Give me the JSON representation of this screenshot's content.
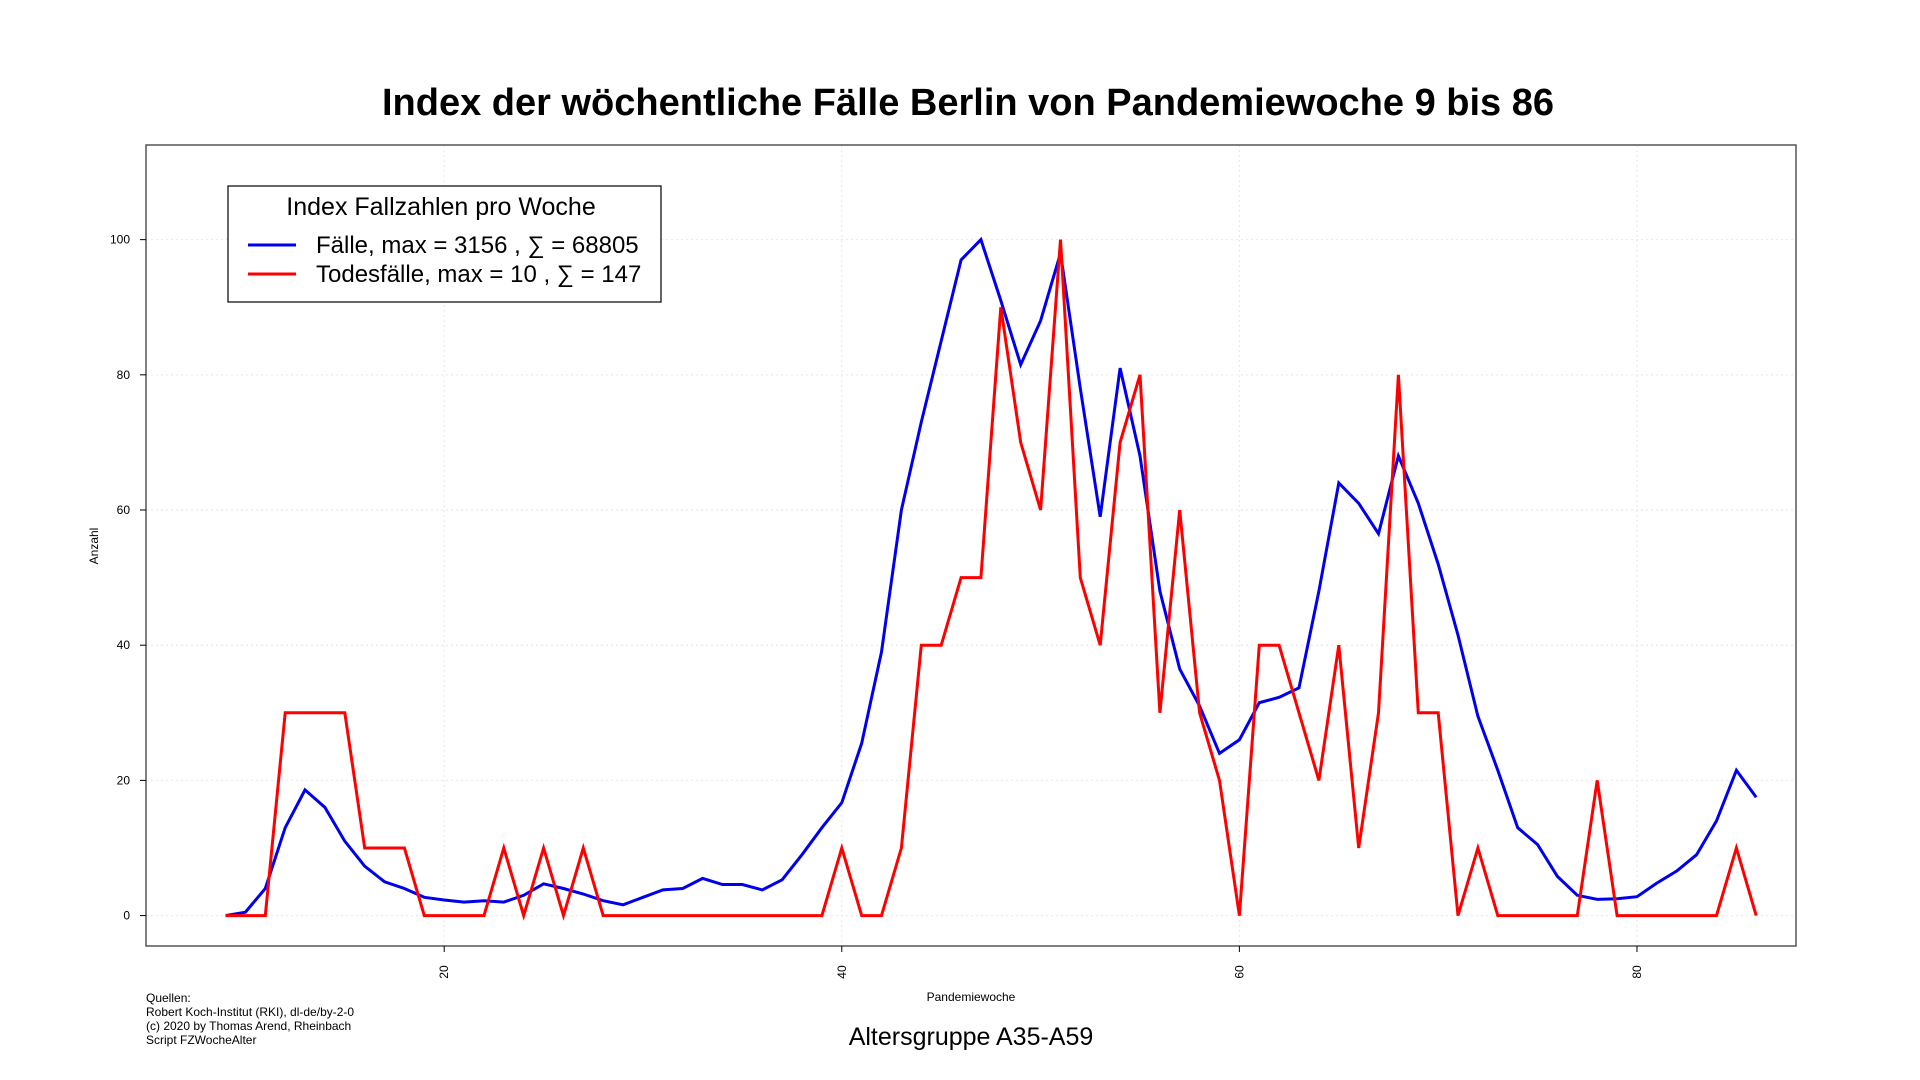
{
  "chart_data": {
    "type": "line",
    "title": "Index der wöchentliche Fälle Berlin von Pandemiewoche 9 bis 86",
    "xlabel": "Pandemiewoche",
    "ylabel": "Anzahl",
    "subtitle": "Altersgruppe A35-A59",
    "xlim": [
      5,
      88
    ],
    "ylim": [
      -4.5,
      114
    ],
    "xticks": [
      20,
      40,
      60,
      80
    ],
    "yticks": [
      0,
      20,
      40,
      60,
      80,
      100
    ],
    "grid": true,
    "legend": {
      "title": "Index Fallzahlen pro Woche",
      "placement": "top-left",
      "entries": [
        "Fälle, max = 3156 ,  ∑  = 68805",
        "Todesfälle, max = 10 ,  ∑  = 147"
      ]
    },
    "x": [
      9,
      10,
      11,
      12,
      13,
      14,
      15,
      16,
      17,
      18,
      19,
      20,
      21,
      22,
      23,
      24,
      25,
      26,
      27,
      28,
      29,
      30,
      31,
      32,
      33,
      34,
      35,
      36,
      37,
      38,
      39,
      40,
      41,
      42,
      43,
      44,
      45,
      46,
      47,
      48,
      49,
      50,
      51,
      52,
      53,
      54,
      55,
      56,
      57,
      58,
      59,
      60,
      61,
      62,
      63,
      64,
      65,
      66,
      67,
      68,
      69,
      70,
      71,
      72,
      73,
      74,
      75,
      76,
      77,
      78,
      79,
      80,
      81,
      82,
      83,
      84,
      85,
      86
    ],
    "series": [
      {
        "name": "Fälle",
        "color": "#0000ee",
        "values": [
          0,
          0.5,
          4,
          13,
          18.6,
          16,
          11,
          7.3,
          5,
          4,
          2.7,
          2.3,
          2,
          2.2,
          2,
          3,
          4.7,
          4,
          3.2,
          2.2,
          1.6,
          2.7,
          3.8,
          4,
          5.5,
          4.6,
          4.6,
          3.8,
          5.3,
          9,
          13,
          16.7,
          25.5,
          39,
          60,
          73,
          85,
          97,
          100,
          91,
          81.5,
          88,
          98,
          78,
          59,
          81,
          68,
          48,
          36.5,
          31,
          24,
          26,
          31.5,
          32.3,
          33.7,
          48,
          64,
          61,
          56.5,
          68,
          61,
          52,
          41.5,
          29.5,
          21.5,
          13,
          10.5,
          5.8,
          3,
          2.4,
          2.5,
          2.8,
          4.8,
          6.6,
          9,
          14,
          21.5,
          17.5
        ]
      },
      {
        "name": "Todesfälle",
        "color": "#ff0000",
        "values": [
          0,
          0,
          0,
          30,
          30,
          30,
          30,
          10,
          10,
          10,
          0,
          0,
          0,
          0,
          10,
          0,
          10,
          0,
          10,
          0,
          0,
          0,
          0,
          0,
          0,
          0,
          0,
          0,
          0,
          0,
          0,
          10,
          0,
          0,
          10,
          40,
          40,
          50,
          50,
          90,
          70,
          60,
          100,
          50,
          40,
          70,
          80,
          30,
          60,
          30,
          20,
          0,
          40,
          40,
          30,
          20,
          40,
          10,
          30,
          80,
          30,
          30,
          0,
          10,
          0,
          0,
          0,
          0,
          0,
          20,
          0,
          0,
          0,
          0,
          0,
          0,
          10,
          0
        ]
      }
    ]
  },
  "sources": {
    "heading": "Quellen:",
    "lines": [
      "Robert Koch-Institut (RKI), dl-de/by-2-0",
      "(c) 2020 by Thomas Arend, Rheinbach",
      "Script FZWocheAlter"
    ]
  }
}
